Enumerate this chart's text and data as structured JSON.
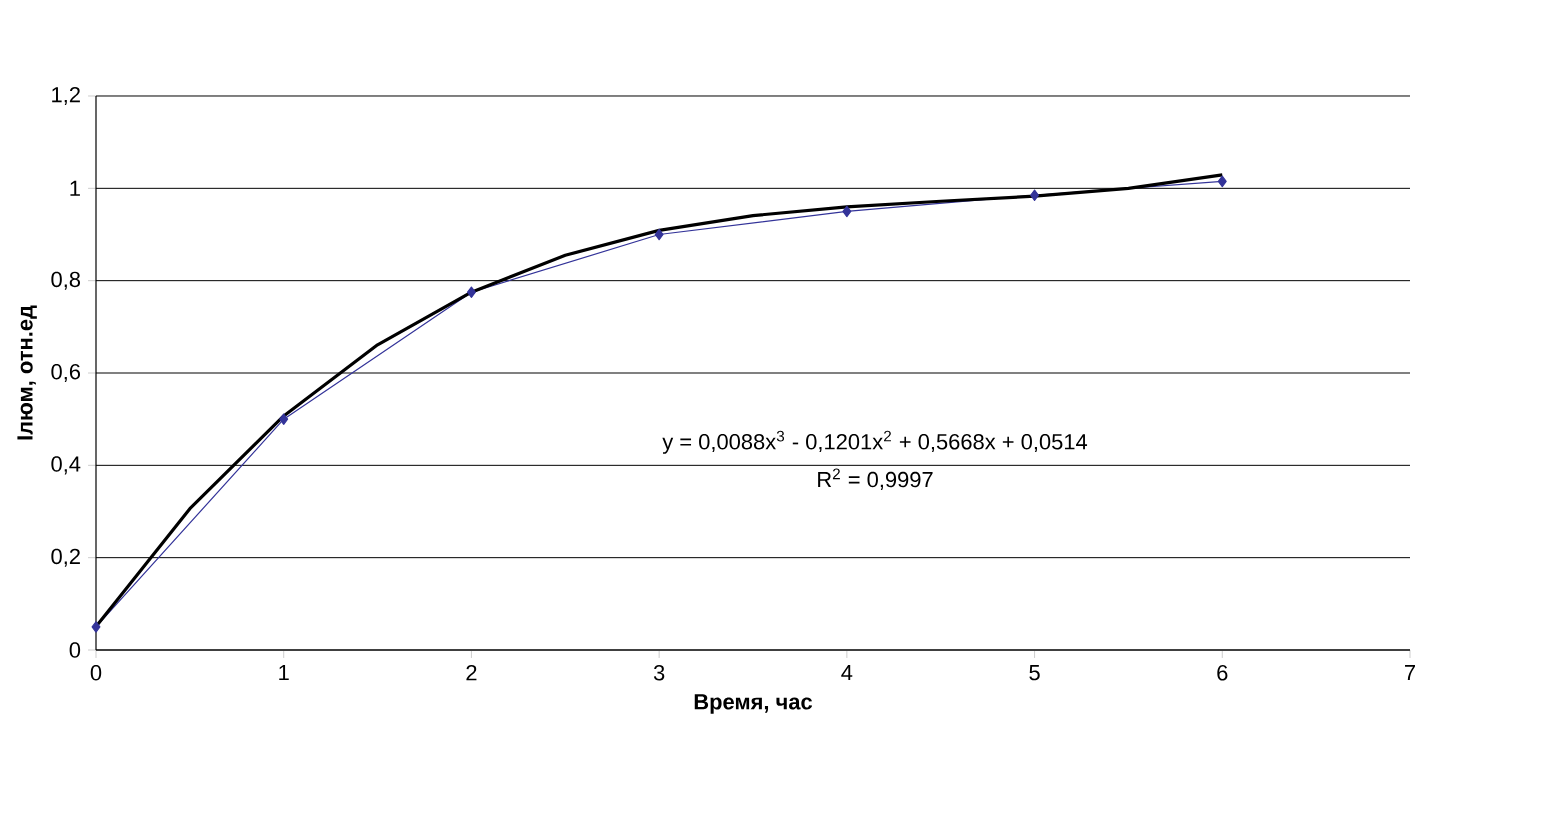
{
  "chart_data": {
    "type": "line",
    "xlabel": "Время, час",
    "ylabel": "Iлюм, отн.ед",
    "x": [
      0,
      1,
      2,
      3,
      4,
      5,
      6
    ],
    "series": [
      {
        "color": "#333399",
        "marker": "diamond",
        "values": [
          0.05,
          0.5,
          0.775,
          0.9,
          0.95,
          0.985,
          1.015
        ]
      },
      {
        "color": "#000000",
        "marker": "none",
        "x": [
          0,
          0.5,
          1,
          1.5,
          2,
          2.5,
          3,
          3.5,
          4,
          4.5,
          5,
          5.5,
          6
        ],
        "values": [
          0.051,
          0.306,
          0.507,
          0.661,
          0.775,
          0.855,
          0.909,
          0.941,
          0.96,
          0.972,
          0.983,
          1.0,
          1.029
        ]
      }
    ],
    "xlim": [
      0,
      7
    ],
    "xticks": [
      0,
      1,
      2,
      3,
      4,
      5,
      6,
      7
    ],
    "ylim": [
      0,
      1.2
    ],
    "yticks": [
      0,
      {
        "value": 0.2,
        "label": "0,2"
      },
      {
        "value": 0.4,
        "label": "0,4"
      },
      {
        "value": 0.6,
        "label": "0,6"
      },
      {
        "value": 0.8,
        "label": "0,8"
      },
      1,
      {
        "value": 1.2,
        "label": "1,2"
      }
    ],
    "grid": "y",
    "annotations": [
      "y = 0,0088x$^{3}$ - 0,1201x$^{2}$ + 0,5668x + 0,0514",
      "R$^{2}$ = 0,9997"
    ]
  }
}
